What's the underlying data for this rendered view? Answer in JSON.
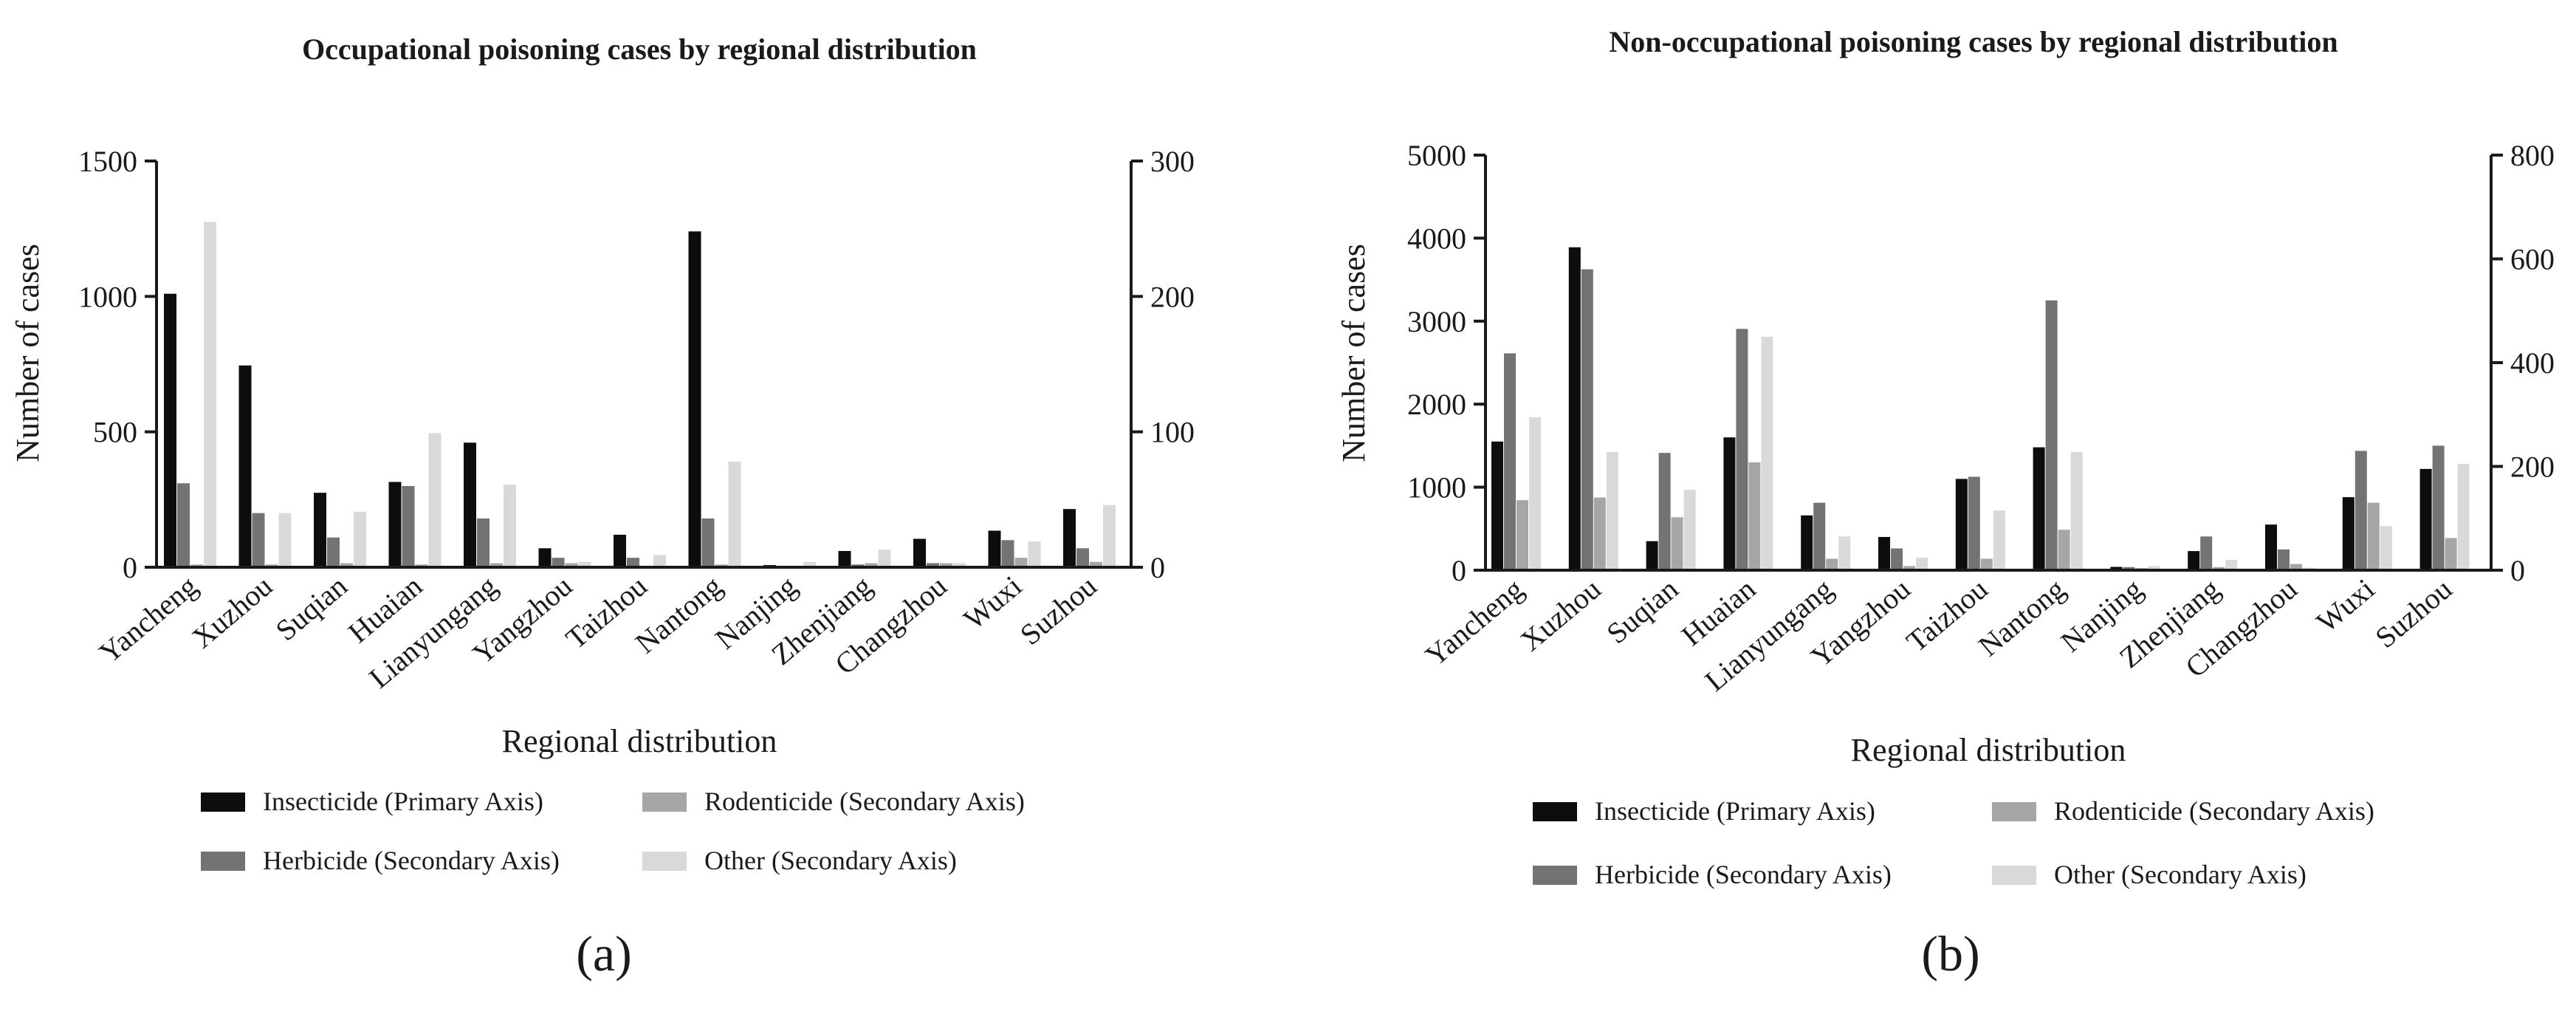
{
  "colors": {
    "insecticide": "#0d0d0d",
    "herbicide": "#737373",
    "rodenticide": "#a6a6a6",
    "other": "#d9d9d9",
    "axis": "#1a1a1a"
  },
  "chart_data": [
    {
      "type": "bar",
      "panel_label": "(a)",
      "title": "Occupational poisoning cases by regional distribution",
      "xlabel": "Regional distribution",
      "ylabel": "Number of cases",
      "y2label": "",
      "ylim": [
        0,
        1500
      ],
      "y2lim": [
        0,
        300
      ],
      "yticks": [
        "0",
        "500",
        "1000",
        "1500"
      ],
      "y2ticks": [
        "0",
        "100",
        "200",
        "300"
      ],
      "grid": false,
      "legend_position": "bottom",
      "categories": [
        "Yancheng",
        "Xuzhou",
        "Suqian",
        "Huaian",
        "Lianyungang",
        "Yangzhou",
        "Taizhou",
        "Nantong",
        "Nanjing",
        "Zhenjiang",
        "Changzhou",
        "Wuxi",
        "Suzhou"
      ],
      "series": [
        {
          "name": "Insecticide (Primary Axis)",
          "axis": "primary",
          "values": [
            1010,
            745,
            275,
            315,
            460,
            70,
            120,
            1240,
            8,
            60,
            105,
            135,
            215
          ]
        },
        {
          "name": "Herbicide (Secondary Axis)",
          "axis": "secondary",
          "values": [
            62,
            40,
            22,
            60,
            36,
            7,
            7,
            36,
            1,
            2,
            3,
            20,
            14
          ]
        },
        {
          "name": "Rodenticide (Secondary Axis)",
          "axis": "secondary",
          "values": [
            2,
            2,
            3,
            2,
            3,
            3,
            1,
            2,
            0,
            3,
            3,
            7,
            4
          ]
        },
        {
          "name": "Other (Secondary Axis)",
          "axis": "secondary",
          "values": [
            255,
            40,
            41,
            99,
            61,
            4,
            9,
            78,
            4,
            13,
            3,
            19,
            46
          ]
        }
      ]
    },
    {
      "type": "bar",
      "panel_label": "(b)",
      "title": "Non-occupational poisoning cases by regional distribution",
      "xlabel": "Regional distribution",
      "ylabel": "Number of cases",
      "y2label": "",
      "ylim": [
        0,
        5000
      ],
      "y2lim": [
        0,
        800
      ],
      "yticks": [
        "0",
        "1000",
        "2000",
        "3000",
        "4000",
        "5000"
      ],
      "y2ticks": [
        "0",
        "200",
        "400",
        "600",
        "800"
      ],
      "grid": false,
      "legend_position": "bottom",
      "categories": [
        "Yancheng",
        "Xuzhou",
        "Suqian",
        "Huaian",
        "Lianyungang",
        "Yangzhou",
        "Taizhou",
        "Nantong",
        "Nanjing",
        "Zhenjiang",
        "Changzhou",
        "Wuxi",
        "Suzhou"
      ],
      "series": [
        {
          "name": "Insecticide (Primary Axis)",
          "axis": "primary",
          "values": [
            1550,
            3890,
            350,
            1600,
            660,
            400,
            1100,
            1480,
            40,
            230,
            550,
            880,
            1220
          ]
        },
        {
          "name": "Herbicide (Secondary Axis)",
          "axis": "secondary",
          "values": [
            418,
            580,
            226,
            465,
            130,
            42,
            180,
            520,
            6,
            65,
            40,
            230,
            240
          ]
        },
        {
          "name": "Rodenticide (Secondary Axis)",
          "axis": "secondary",
          "values": [
            135,
            140,
            102,
            208,
            22,
            8,
            22,
            78,
            4,
            6,
            12,
            130,
            62
          ]
        },
        {
          "name": "Other (Secondary Axis)",
          "axis": "secondary",
          "values": [
            295,
            228,
            155,
            450,
            65,
            24,
            115,
            228,
            8,
            20,
            5,
            85,
            205
          ]
        }
      ]
    }
  ]
}
